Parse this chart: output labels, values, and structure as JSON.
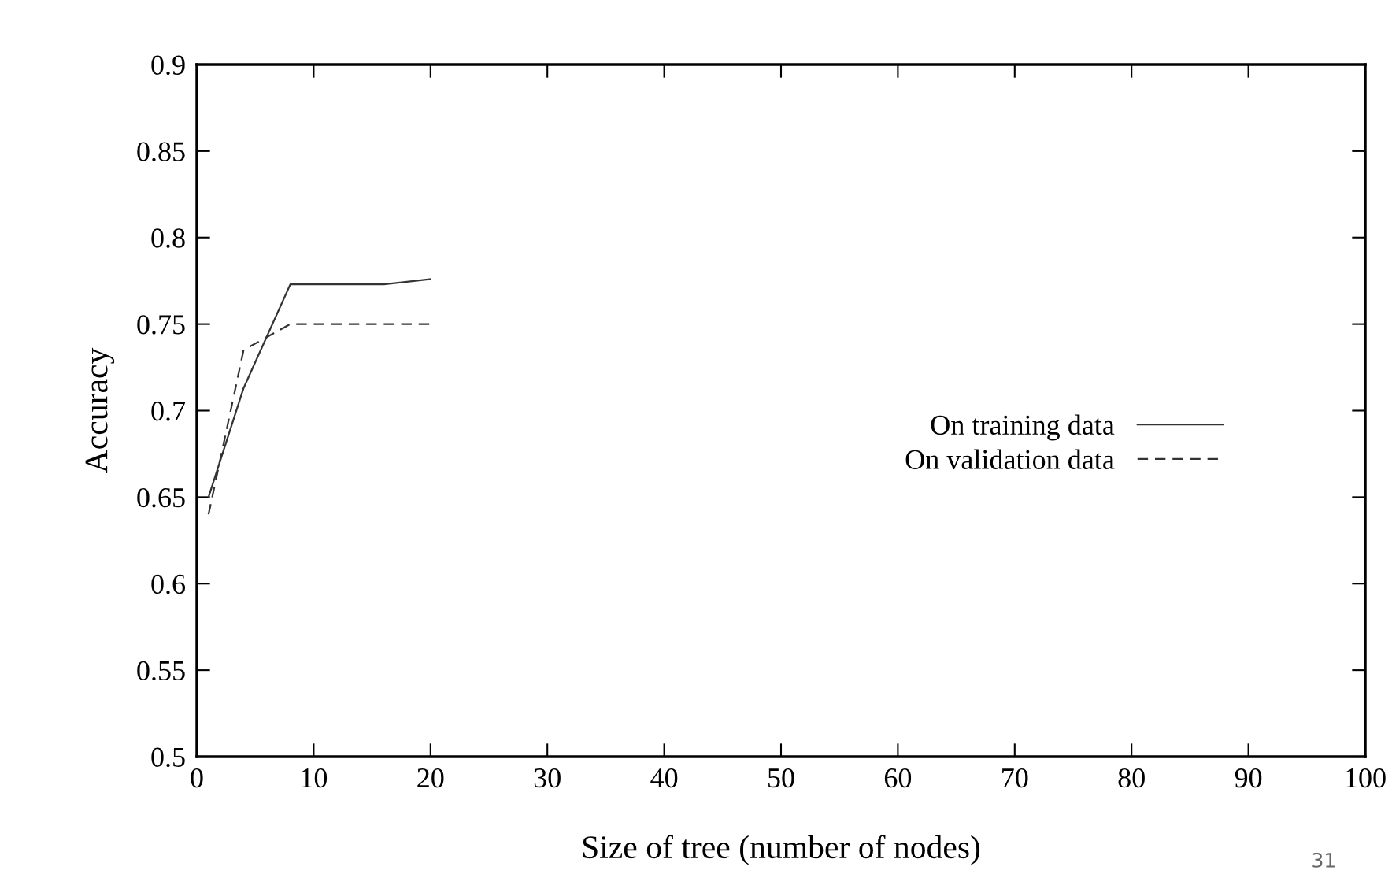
{
  "chart_data": {
    "type": "line",
    "xlabel": "Size of tree (number of nodes)",
    "ylabel": "Accuracy",
    "series": [
      {
        "name": "On training data",
        "color": "#333333",
        "line_style": "solid",
        "x": [
          1,
          4,
          8,
          16,
          20
        ],
        "values": [
          0.65,
          0.713,
          0.773,
          0.773,
          0.776
        ]
      },
      {
        "name": "On validation data",
        "color": "#333333",
        "line_style": "dashed",
        "x": [
          1,
          4,
          8,
          20
        ],
        "values": [
          0.64,
          0.735,
          0.75,
          0.75
        ]
      }
    ],
    "xlim": [
      0,
      100
    ],
    "xticks": [
      0,
      10,
      20,
      30,
      40,
      50,
      60,
      70,
      80,
      90,
      100
    ],
    "ylim": [
      0.5,
      0.9
    ],
    "yticks": [
      0.5,
      0.55,
      0.6,
      0.65,
      0.7,
      0.75,
      0.8,
      0.85,
      0.9
    ],
    "grid": false,
    "legend": "bottom right",
    "marker": "none",
    "annotations": [
      "31"
    ]
  }
}
